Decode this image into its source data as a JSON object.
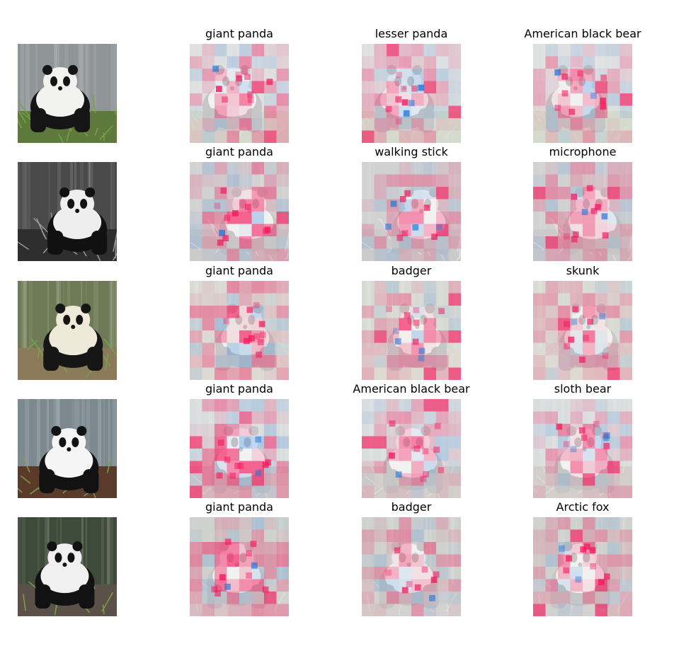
{
  "figure": {
    "rows": [
      {
        "input": "panda-photo-1",
        "scene": {
          "bg": "#8f9496",
          "body": "#f2f2f0",
          "fur": "#151515",
          "floor": "#5d7a3c",
          "bw": false
        },
        "titles": [
          "giant panda",
          "lesser panda",
          "American black bear"
        ]
      },
      {
        "input": "panda-photo-2",
        "scene": {
          "bg": "#4a4a4a",
          "body": "#eeeeee",
          "fur": "#111111",
          "floor": "#2e2e2e",
          "bw": true
        },
        "titles": [
          "giant panda",
          "walking stick",
          "microphone"
        ]
      },
      {
        "input": "panda-photo-3",
        "scene": {
          "bg": "#6e7a55",
          "body": "#efe9da",
          "fur": "#161616",
          "floor": "#8a7a5a",
          "bw": false
        },
        "titles": [
          "giant panda",
          "badger",
          "skunk"
        ]
      },
      {
        "input": "panda-photo-4",
        "scene": {
          "bg": "#7c8a90",
          "body": "#f5f5f5",
          "fur": "#121212",
          "floor": "#5a3a2a",
          "bw": false
        },
        "titles": [
          "giant panda",
          "American black bear",
          "sloth bear"
        ]
      },
      {
        "input": "panda-photo-5",
        "scene": {
          "bg": "#3e4a3a",
          "body": "#f0f0f0",
          "fur": "#121212",
          "floor": "#5b5148",
          "bw": false
        },
        "titles": [
          "giant panda",
          "badger",
          "Arctic fox"
        ]
      }
    ],
    "positive_color": "#f5145a",
    "negative_color": "#1e78dc"
  }
}
